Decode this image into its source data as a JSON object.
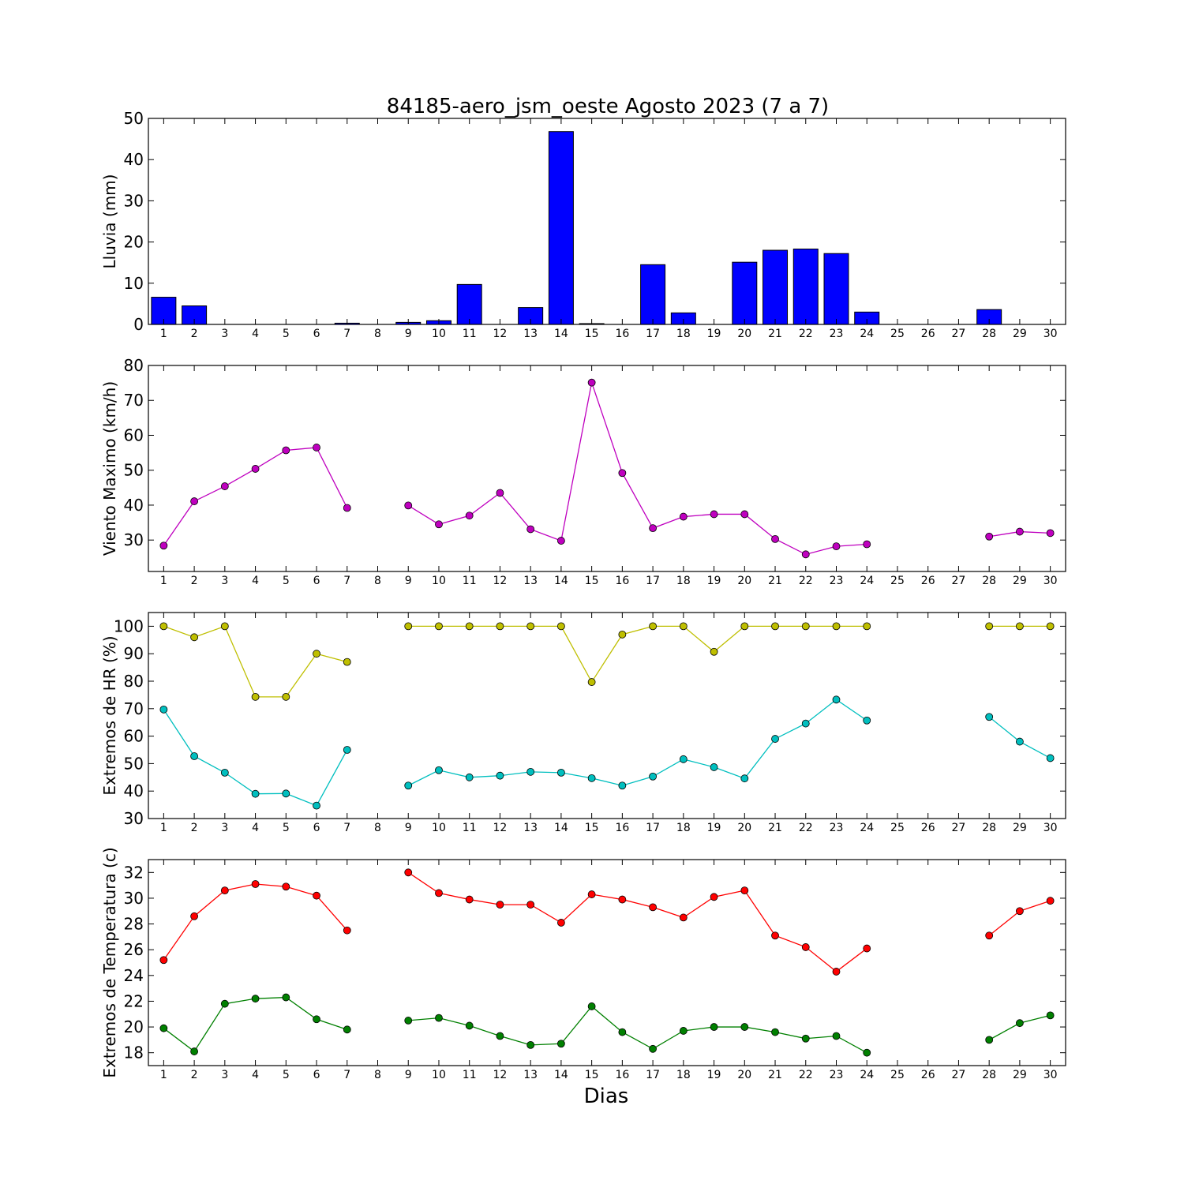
{
  "figure": {
    "title": "84185-aero_jsm_oeste Agosto 2023  (7 a 7)",
    "xlabel": "Dias"
  },
  "chart_data": [
    {
      "type": "bar",
      "ylabel": "Lluvia (mm)",
      "ylim": [
        0,
        50
      ],
      "yticks": [
        0,
        10,
        20,
        30,
        40,
        50
      ],
      "xlim": [
        0.5,
        30.5
      ],
      "grid": false,
      "categories": [
        1,
        2,
        3,
        4,
        5,
        6,
        7,
        8,
        9,
        10,
        11,
        12,
        13,
        14,
        15,
        16,
        17,
        18,
        19,
        20,
        21,
        22,
        23,
        24,
        25,
        26,
        27,
        28,
        29,
        30
      ],
      "series": [
        {
          "color": "#0000ff",
          "values": [
            6.6,
            4.5,
            0,
            0,
            0,
            0,
            0.3,
            0,
            0.5,
            0.9,
            9.7,
            0,
            4.1,
            46.8,
            0.2,
            0,
            14.5,
            2.8,
            0,
            15.1,
            18,
            18.3,
            17.2,
            3,
            0,
            0,
            0,
            3.6,
            0,
            0
          ]
        }
      ]
    },
    {
      "type": "line",
      "ylabel": "Viento Maximo (km/h)",
      "ylim": [
        21,
        80
      ],
      "yticks": [
        30,
        40,
        50,
        60,
        70,
        80
      ],
      "xlim": [
        0.5,
        30.5
      ],
      "grid": false,
      "x": [
        1,
        2,
        3,
        4,
        5,
        6,
        7,
        8,
        9,
        10,
        11,
        12,
        13,
        14,
        15,
        16,
        17,
        18,
        19,
        20,
        21,
        22,
        23,
        24,
        25,
        26,
        27,
        28,
        29,
        30
      ],
      "series": [
        {
          "color": "#bf00bf",
          "values": [
            28.4,
            41.1,
            45.4,
            50.4,
            55.7,
            56.5,
            39.2,
            null,
            39.9,
            34.5,
            37,
            43.5,
            33.1,
            29.8,
            75.1,
            49.2,
            33.4,
            36.7,
            37.4,
            37.4,
            30.3,
            25.9,
            28.2,
            28.8,
            null,
            null,
            null,
            31,
            32.4,
            32
          ]
        }
      ]
    },
    {
      "type": "line",
      "ylabel": "Extremos de HR (%)",
      "ylim": [
        30,
        105
      ],
      "yticks": [
        30,
        40,
        50,
        60,
        70,
        80,
        90,
        100
      ],
      "xlim": [
        0.5,
        30.5
      ],
      "grid": false,
      "x": [
        1,
        2,
        3,
        4,
        5,
        6,
        7,
        8,
        9,
        10,
        11,
        12,
        13,
        14,
        15,
        16,
        17,
        18,
        19,
        20,
        21,
        22,
        23,
        24,
        25,
        26,
        27,
        28,
        29,
        30
      ],
      "series": [
        {
          "color": "#bfbf00",
          "values": [
            100,
            96,
            100,
            74.3,
            74.3,
            90,
            87,
            null,
            100,
            100,
            100,
            100,
            100,
            100,
            79.7,
            97,
            100,
            100,
            90.7,
            100,
            100,
            100,
            100,
            100,
            null,
            null,
            null,
            100,
            100,
            100
          ]
        },
        {
          "color": "#00bfbf",
          "values": [
            69.7,
            52.7,
            46.7,
            39,
            39.1,
            34.7,
            55,
            null,
            42,
            47.6,
            45,
            45.6,
            47,
            46.7,
            44.7,
            42,
            45.3,
            51.6,
            48.7,
            44.6,
            59,
            64.6,
            73.3,
            65.7,
            null,
            null,
            null,
            67,
            58,
            52
          ]
        }
      ]
    },
    {
      "type": "line",
      "ylabel": "Extremos de Temperatura (c)",
      "ylim": [
        17,
        33
      ],
      "yticks": [
        18,
        20,
        22,
        24,
        26,
        28,
        30,
        32
      ],
      "xlim": [
        0.5,
        30.5
      ],
      "grid": false,
      "x": [
        1,
        2,
        3,
        4,
        5,
        6,
        7,
        8,
        9,
        10,
        11,
        12,
        13,
        14,
        15,
        16,
        17,
        18,
        19,
        20,
        21,
        22,
        23,
        24,
        25,
        26,
        27,
        28,
        29,
        30
      ],
      "series": [
        {
          "color": "#ff0000",
          "values": [
            25.2,
            28.6,
            30.6,
            31.1,
            30.9,
            30.2,
            27.5,
            null,
            32,
            30.4,
            29.9,
            29.5,
            29.5,
            28.1,
            30.3,
            29.9,
            29.3,
            28.5,
            30.1,
            30.6,
            27.1,
            26.2,
            24.3,
            26.1,
            null,
            null,
            null,
            27.1,
            29,
            29.8
          ]
        },
        {
          "color": "#008000",
          "values": [
            19.9,
            18.1,
            21.8,
            22.2,
            22.3,
            20.6,
            19.8,
            null,
            20.5,
            20.7,
            20.1,
            19.3,
            18.6,
            18.7,
            21.6,
            19.6,
            18.3,
            19.7,
            20,
            20,
            19.6,
            19.1,
            19.3,
            18,
            null,
            null,
            null,
            19,
            20.3,
            20.9
          ]
        }
      ]
    }
  ]
}
